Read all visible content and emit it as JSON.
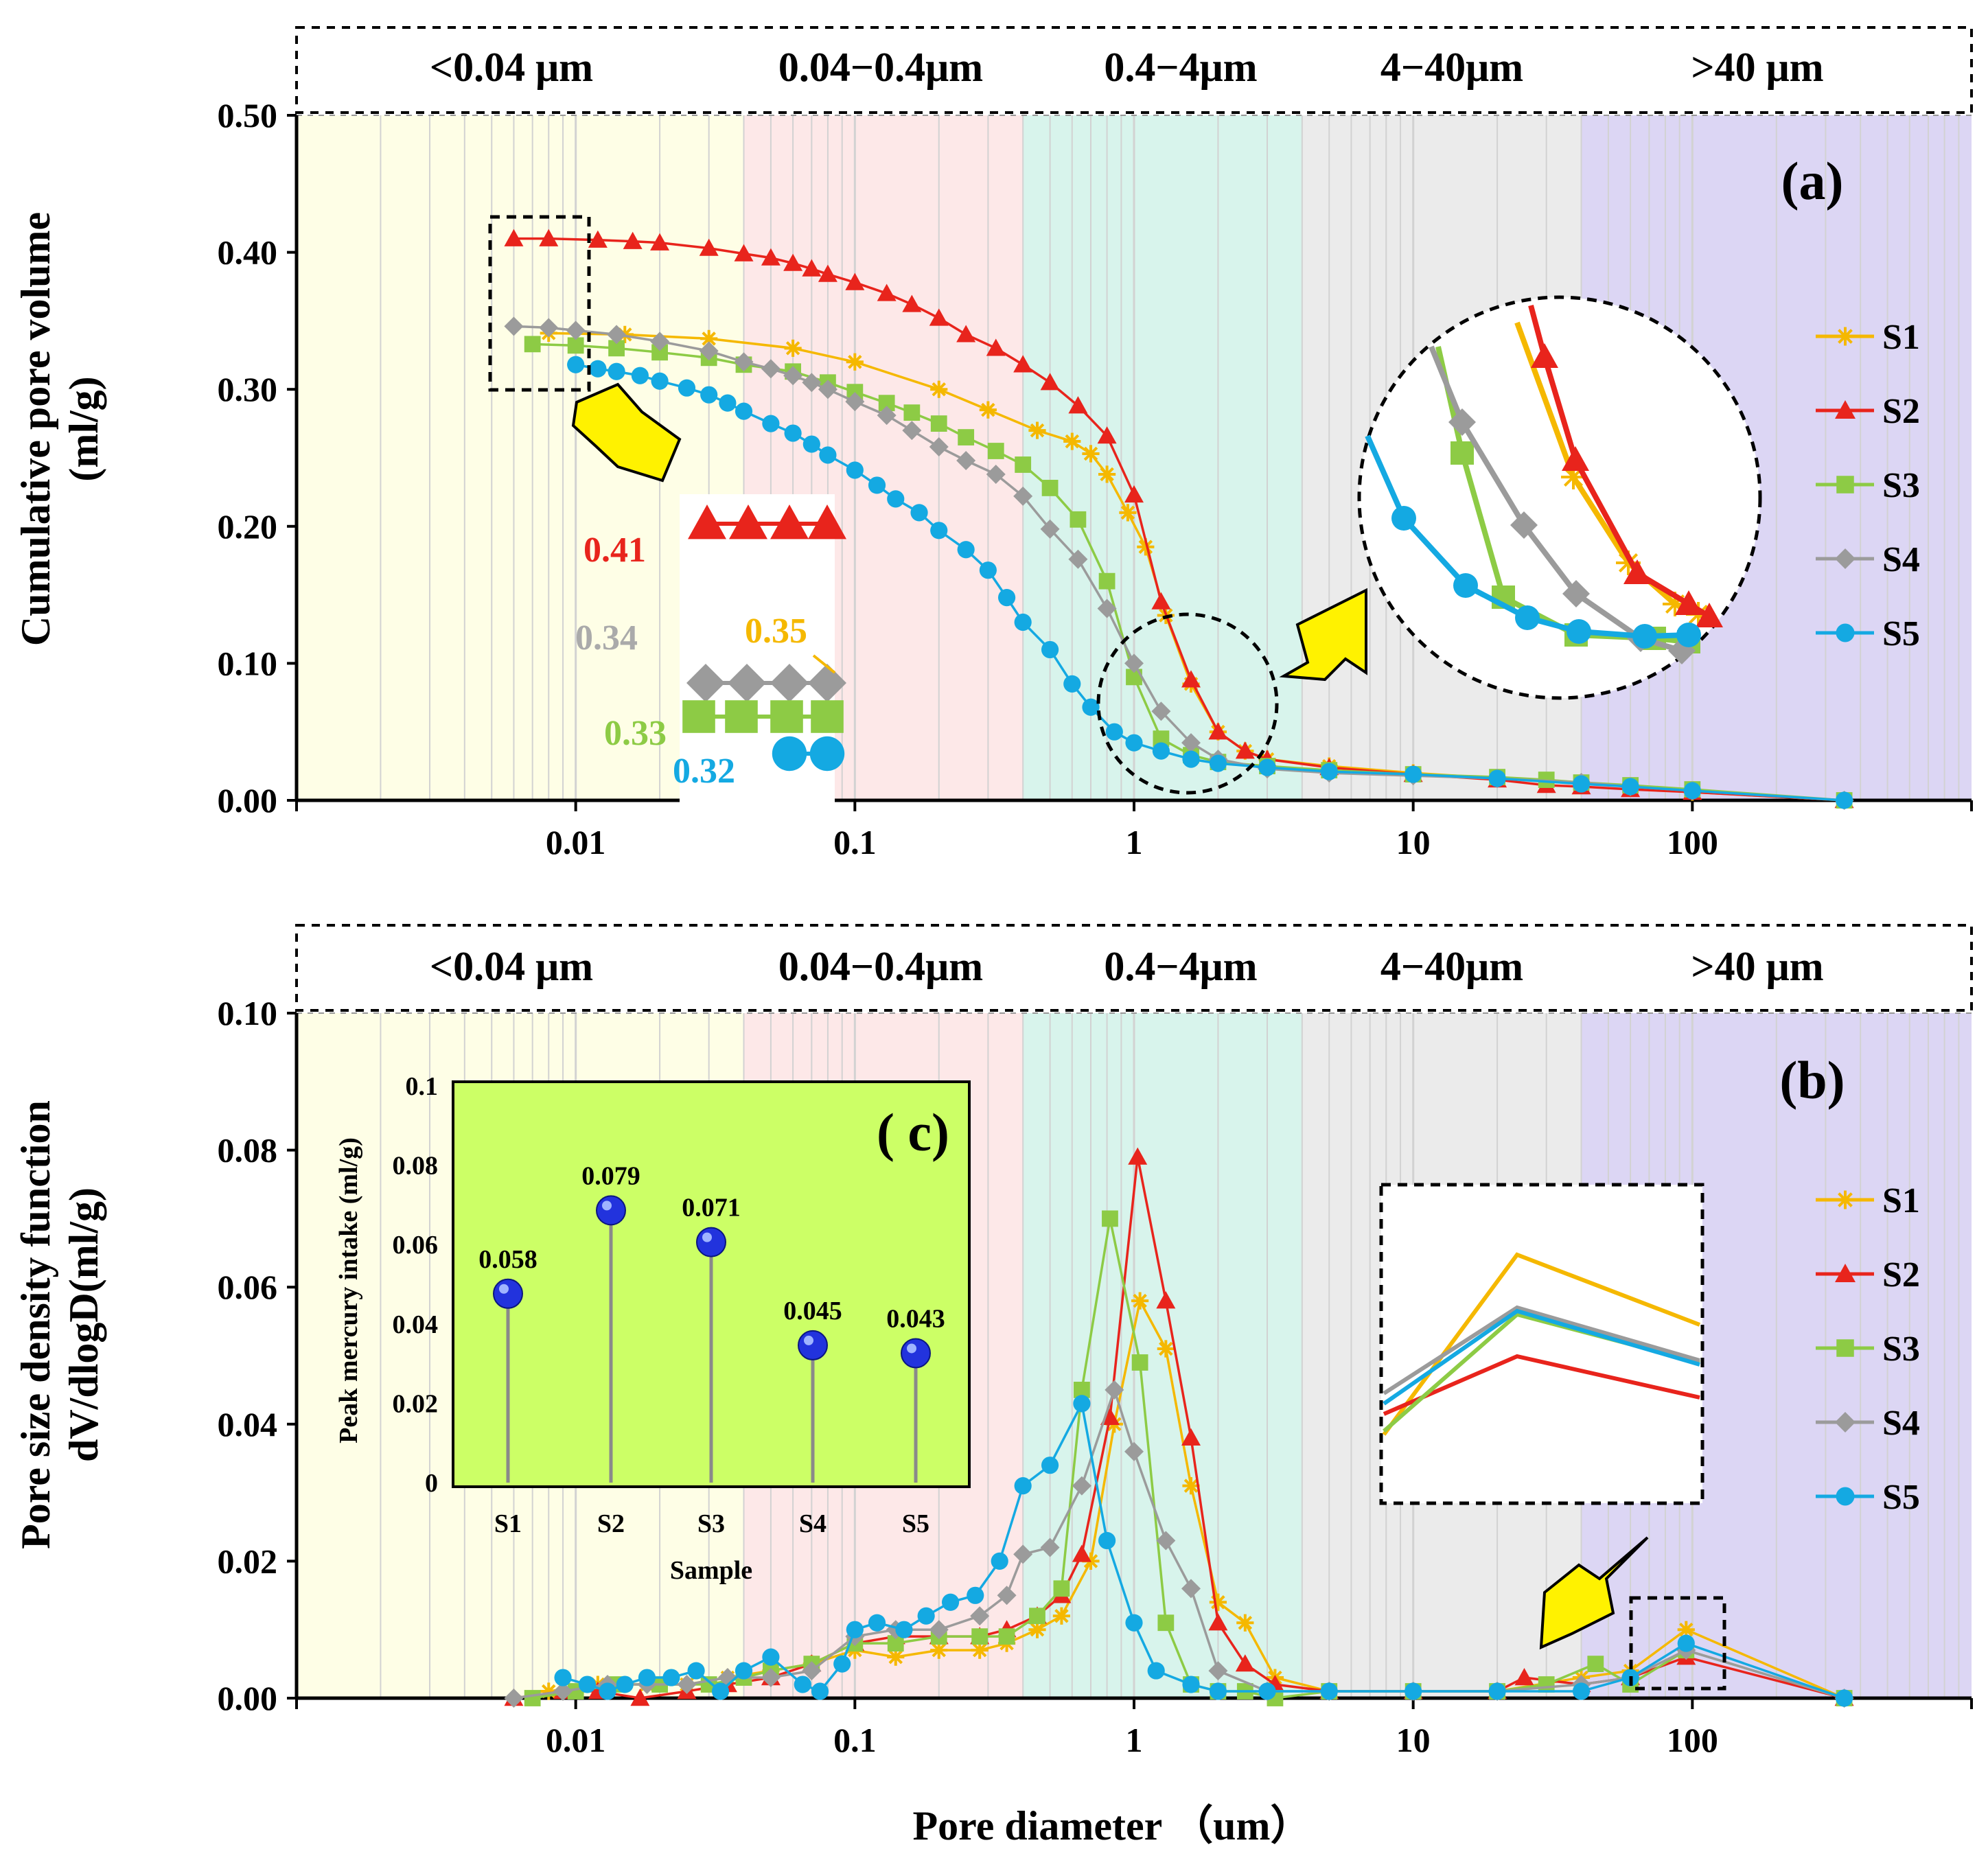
{
  "chart_data": [
    {
      "id": "a",
      "type": "line",
      "panel_label": "(a)",
      "xscale": "log",
      "xlim": [
        0.001,
        1000
      ],
      "ylim": [
        0,
        0.5
      ],
      "ylabel_line1": "Cumulative pore volume",
      "ylabel_line2": "(ml/g)",
      "xlabel": "",
      "xticks": [
        "0.01",
        "0.1",
        "1",
        "10",
        "100"
      ],
      "yticks": [
        "0.00",
        "0.10",
        "0.20",
        "0.30",
        "0.40",
        "0.50"
      ],
      "grid": true,
      "legend_position": "right",
      "band_labels": [
        "<0.04 μm",
        "0.04−0.4μm",
        "0.4−4μm",
        "4−40μm",
        ">40 μm"
      ],
      "callouts": [
        "0.41",
        "0.34",
        "0.35",
        "0.33",
        "0.32"
      ],
      "series": [
        {
          "name": "S1",
          "color": "#F5B800",
          "marker": "star",
          "x": [
            0.008,
            0.015,
            0.03,
            0.06,
            0.1,
            0.2,
            0.3,
            0.45,
            0.6,
            0.7,
            0.8,
            0.95,
            1.1,
            1.3,
            1.6,
            2,
            2.5,
            3,
            5,
            10,
            20,
            40,
            60,
            100,
            350
          ],
          "y": [
            0.341,
            0.34,
            0.337,
            0.33,
            0.32,
            0.3,
            0.285,
            0.27,
            0.262,
            0.253,
            0.238,
            0.21,
            0.185,
            0.135,
            0.085,
            0.05,
            0.036,
            0.03,
            0.025,
            0.02,
            0.016,
            0.013,
            0.01,
            0.006,
            0.0
          ]
        },
        {
          "name": "S2",
          "color": "#E8241C",
          "marker": "triangle",
          "x": [
            0.006,
            0.008,
            0.012,
            0.016,
            0.02,
            0.03,
            0.04,
            0.05,
            0.06,
            0.07,
            0.08,
            0.1,
            0.13,
            0.16,
            0.2,
            0.25,
            0.32,
            0.4,
            0.5,
            0.63,
            0.8,
            1.0,
            1.25,
            1.6,
            2.0,
            2.5,
            3,
            5,
            10,
            20,
            30,
            40,
            60,
            100,
            350
          ],
          "y": [
            0.41,
            0.41,
            0.409,
            0.408,
            0.407,
            0.403,
            0.399,
            0.396,
            0.392,
            0.388,
            0.384,
            0.378,
            0.37,
            0.362,
            0.352,
            0.34,
            0.33,
            0.318,
            0.305,
            0.288,
            0.266,
            0.223,
            0.145,
            0.088,
            0.05,
            0.036,
            0.03,
            0.024,
            0.019,
            0.015,
            0.011,
            0.01,
            0.008,
            0.006,
            0.0
          ]
        },
        {
          "name": "S3",
          "color": "#8DCB45",
          "marker": "square",
          "x": [
            0.007,
            0.01,
            0.014,
            0.02,
            0.03,
            0.04,
            0.06,
            0.08,
            0.1,
            0.13,
            0.16,
            0.2,
            0.25,
            0.32,
            0.4,
            0.5,
            0.63,
            0.8,
            1.0,
            1.25,
            1.6,
            2.0,
            3,
            5,
            10,
            20,
            30,
            40,
            60,
            100,
            350
          ],
          "y": [
            0.333,
            0.332,
            0.33,
            0.327,
            0.323,
            0.318,
            0.313,
            0.305,
            0.298,
            0.29,
            0.283,
            0.275,
            0.265,
            0.255,
            0.245,
            0.228,
            0.205,
            0.16,
            0.09,
            0.045,
            0.033,
            0.028,
            0.025,
            0.022,
            0.019,
            0.017,
            0.015,
            0.013,
            0.011,
            0.008,
            0.0
          ]
        },
        {
          "name": "S4",
          "color": "#9B9B9B",
          "marker": "diamond",
          "x": [
            0.006,
            0.008,
            0.01,
            0.014,
            0.02,
            0.03,
            0.04,
            0.05,
            0.06,
            0.07,
            0.08,
            0.1,
            0.13,
            0.16,
            0.2,
            0.25,
            0.32,
            0.4,
            0.5,
            0.63,
            0.8,
            1.0,
            1.25,
            1.6,
            2.0,
            3,
            5,
            10,
            20,
            40,
            60,
            100,
            350
          ],
          "y": [
            0.346,
            0.345,
            0.343,
            0.34,
            0.335,
            0.328,
            0.32,
            0.315,
            0.31,
            0.305,
            0.3,
            0.291,
            0.281,
            0.27,
            0.258,
            0.248,
            0.238,
            0.222,
            0.198,
            0.176,
            0.14,
            0.1,
            0.065,
            0.042,
            0.03,
            0.023,
            0.02,
            0.018,
            0.016,
            0.013,
            0.01,
            0.007,
            0.0
          ]
        },
        {
          "name": "S5",
          "color": "#14A9E2",
          "marker": "circle",
          "x": [
            0.01,
            0.012,
            0.014,
            0.017,
            0.02,
            0.025,
            0.03,
            0.035,
            0.04,
            0.05,
            0.06,
            0.07,
            0.08,
            0.1,
            0.12,
            0.14,
            0.17,
            0.2,
            0.25,
            0.3,
            0.35,
            0.4,
            0.5,
            0.6,
            0.7,
            0.85,
            1.0,
            1.25,
            1.6,
            2,
            3,
            5,
            10,
            20,
            40,
            60,
            100,
            350
          ],
          "y": [
            0.318,
            0.315,
            0.313,
            0.31,
            0.306,
            0.301,
            0.296,
            0.29,
            0.284,
            0.275,
            0.268,
            0.26,
            0.252,
            0.241,
            0.23,
            0.22,
            0.21,
            0.197,
            0.183,
            0.168,
            0.148,
            0.13,
            0.11,
            0.085,
            0.068,
            0.05,
            0.042,
            0.036,
            0.03,
            0.027,
            0.024,
            0.021,
            0.019,
            0.016,
            0.012,
            0.01,
            0.007,
            0.0
          ]
        }
      ]
    },
    {
      "id": "b",
      "type": "line",
      "panel_label": "(b)",
      "xscale": "log",
      "xlim": [
        0.001,
        1000
      ],
      "ylim": [
        0,
        0.1
      ],
      "ylabel_line1": "Pore  size density function",
      "ylabel_line2": "dV/dlogD(ml/g)",
      "xlabel": "Pore diameter （um）",
      "xticks": [
        "0.01",
        "0.1",
        "1",
        "10",
        "100"
      ],
      "yticks": [
        "0.00",
        "0.02",
        "0.04",
        "0.06",
        "0.08",
        "0.10"
      ],
      "grid": true,
      "legend_position": "right",
      "band_labels": [
        "<0.04 μm",
        "0.04−0.4μm",
        "0.4−4μm",
        "4−40μm",
        ">40 μm"
      ],
      "series": [
        {
          "name": "S1",
          "color": "#F5B800",
          "marker": "star",
          "x": [
            0.008,
            0.012,
            0.018,
            0.025,
            0.035,
            0.05,
            0.07,
            0.1,
            0.14,
            0.2,
            0.28,
            0.35,
            0.45,
            0.55,
            0.7,
            0.85,
            1.05,
            1.3,
            1.6,
            2.0,
            2.5,
            3.2,
            5,
            10,
            20,
            40,
            60,
            95,
            350
          ],
          "y": [
            0.001,
            0.002,
            0.002,
            0.002,
            0.003,
            0.004,
            0.005,
            0.007,
            0.006,
            0.007,
            0.007,
            0.008,
            0.01,
            0.012,
            0.02,
            0.04,
            0.058,
            0.051,
            0.031,
            0.014,
            0.011,
            0.003,
            0.001,
            0.001,
            0.001,
            0.003,
            0.004,
            0.01,
            0.0
          ]
        },
        {
          "name": "S2",
          "color": "#E8241C",
          "marker": "triangle",
          "x": [
            0.006,
            0.009,
            0.012,
            0.017,
            0.025,
            0.035,
            0.05,
            0.07,
            0.1,
            0.14,
            0.2,
            0.28,
            0.35,
            0.45,
            0.55,
            0.65,
            0.82,
            1.03,
            1.3,
            1.6,
            2.0,
            2.5,
            3.2,
            5,
            10,
            20,
            25,
            40,
            60,
            95,
            350
          ],
          "y": [
            0.0,
            0.001,
            0.001,
            0.0,
            0.001,
            0.002,
            0.003,
            0.005,
            0.008,
            0.009,
            0.009,
            0.009,
            0.01,
            0.012,
            0.015,
            0.021,
            0.041,
            0.079,
            0.058,
            0.038,
            0.011,
            0.005,
            0.002,
            0.001,
            0.001,
            0.001,
            0.003,
            0.002,
            0.003,
            0.006,
            0.0
          ]
        },
        {
          "name": "S3",
          "color": "#8DCB45",
          "marker": "square",
          "x": [
            0.007,
            0.01,
            0.014,
            0.02,
            0.03,
            0.04,
            0.05,
            0.07,
            0.1,
            0.14,
            0.2,
            0.28,
            0.35,
            0.45,
            0.55,
            0.65,
            0.82,
            1.05,
            1.3,
            1.6,
            2.0,
            2.5,
            3.2,
            5,
            10,
            20,
            30,
            45,
            60,
            95,
            350
          ],
          "y": [
            0.0,
            0.001,
            0.002,
            0.002,
            0.002,
            0.003,
            0.004,
            0.005,
            0.008,
            0.008,
            0.009,
            0.009,
            0.009,
            0.012,
            0.016,
            0.045,
            0.07,
            0.049,
            0.011,
            0.002,
            0.001,
            0.001,
            0.0,
            0.001,
            0.001,
            0.001,
            0.002,
            0.005,
            0.002,
            0.007,
            0.0
          ]
        },
        {
          "name": "S4",
          "color": "#9B9B9B",
          "marker": "diamond",
          "x": [
            0.006,
            0.009,
            0.013,
            0.018,
            0.025,
            0.035,
            0.05,
            0.07,
            0.1,
            0.14,
            0.2,
            0.28,
            0.35,
            0.4,
            0.5,
            0.65,
            0.85,
            1.0,
            1.3,
            1.6,
            2.0,
            3,
            5,
            10,
            20,
            40,
            60,
            95,
            350
          ],
          "y": [
            0.0,
            0.001,
            0.002,
            0.002,
            0.002,
            0.003,
            0.003,
            0.004,
            0.009,
            0.01,
            0.01,
            0.012,
            0.015,
            0.021,
            0.022,
            0.031,
            0.045,
            0.036,
            0.023,
            0.016,
            0.004,
            0.001,
            0.001,
            0.001,
            0.001,
            0.002,
            0.003,
            0.007,
            0.0
          ]
        },
        {
          "name": "S5",
          "color": "#14A9E2",
          "marker": "circle",
          "x": [
            0.009,
            0.011,
            0.013,
            0.015,
            0.018,
            0.022,
            0.027,
            0.033,
            0.04,
            0.05,
            0.065,
            0.075,
            0.09,
            0.1,
            0.12,
            0.15,
            0.18,
            0.22,
            0.27,
            0.33,
            0.4,
            0.5,
            0.65,
            0.8,
            1.0,
            1.2,
            1.6,
            2,
            3,
            5,
            10,
            20,
            40,
            60,
            95,
            350
          ],
          "y": [
            0.003,
            0.002,
            0.001,
            0.002,
            0.003,
            0.003,
            0.004,
            0.001,
            0.004,
            0.006,
            0.002,
            0.001,
            0.005,
            0.01,
            0.011,
            0.01,
            0.012,
            0.014,
            0.015,
            0.02,
            0.031,
            0.034,
            0.043,
            0.023,
            0.011,
            0.004,
            0.002,
            0.001,
            0.001,
            0.001,
            0.001,
            0.001,
            0.001,
            0.003,
            0.008,
            0.0
          ]
        }
      ]
    },
    {
      "id": "c",
      "type": "scatter",
      "panel_label": "( c)",
      "ylabel": "Peak mercury intake (ml/g)",
      "xlabel": "Sample",
      "categories": [
        "S1",
        "S2",
        "S3",
        "S4",
        "S5"
      ],
      "values": [
        0.058,
        0.079,
        0.071,
        0.045,
        0.043
      ],
      "value_labels": [
        "0.058",
        "0.079",
        "0.071",
        "0.045",
        "0.043"
      ],
      "ylim": [
        0,
        0.1
      ],
      "yticks": [
        "0",
        "0.02",
        "0.04",
        "0.06",
        "0.08",
        "0.1"
      ],
      "background": "#CCFF66",
      "marker_color": "#2233DD"
    }
  ]
}
